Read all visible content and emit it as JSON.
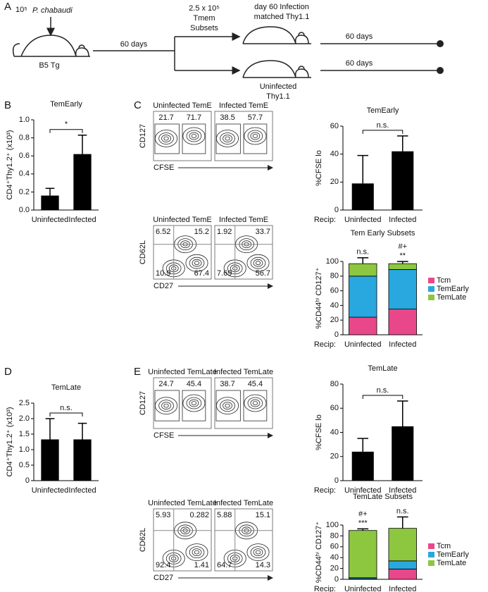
{
  "panel_labels": [
    "A",
    "B",
    "C",
    "D",
    "E"
  ],
  "schematic": {
    "dose": "10⁵",
    "parasite": "P. chabaudi",
    "donor": "B5 Tg",
    "interval": "60 days",
    "cells": [
      "2.5 x 10⁵",
      "Tmem",
      "Subsets"
    ],
    "infected_recipient": [
      "day 60 Infection",
      "matched Thy1.1"
    ],
    "uninfected_recipient": [
      "Uninfected",
      "Thy1.1"
    ],
    "followup": [
      "60 days",
      "60 days"
    ]
  },
  "recip_label": "Recip:",
  "chart_data": [
    {
      "type": "bar",
      "title": "TemEarly",
      "y_label": "CD4⁺Thy1.2⁺ (x10³)",
      "categories": [
        "Uninfected",
        "Infected"
      ],
      "values": [
        0.16,
        0.62
      ],
      "errors": [
        0.08,
        0.21
      ],
      "color": "#000000",
      "ylim": [
        0,
        1.0
      ],
      "yticks": [
        {
          "value": 0,
          "label": "0.0"
        },
        0.2,
        0.4,
        0.6,
        0.8,
        {
          "value": 1,
          "label": "1.0"
        }
      ],
      "annotations": [
        "*"
      ]
    },
    {
      "type": "bar",
      "title": "TemEarly",
      "y_label": "%CFSE lo",
      "categories": [
        "Uninfected",
        "Infected"
      ],
      "values": [
        19,
        42
      ],
      "errors": [
        20,
        11
      ],
      "color": "#000000",
      "ylim": [
        0,
        60
      ],
      "yticks": [
        0,
        20,
        40,
        60
      ],
      "annotations": [
        "n.s."
      ]
    },
    {
      "type": "stacked_bar",
      "title": "Tem Early Subsets",
      "y_label": "%CD44ʰⁱ CD127⁺",
      "categories": [
        "Uninfected",
        "Infected"
      ],
      "series": [
        {
          "name": "Tcm",
          "color": "#e8488a",
          "values": [
            24,
            35
          ],
          "errors": [
            18,
            4
          ]
        },
        {
          "name": "TemEarly",
          "color": "#29a8e0",
          "values": [
            56,
            54
          ],
          "errors": [
            3,
            2
          ]
        },
        {
          "name": "TemLate",
          "color": "#8dc63f",
          "values": [
            17,
            8
          ],
          "errors": [
            8,
            3
          ]
        }
      ],
      "ylim": [
        0,
        100
      ],
      "yticks": [
        0,
        20,
        40,
        60,
        80,
        100
      ],
      "annotations": [
        [
          "n.s."
        ],
        [
          "#+",
          "**"
        ]
      ]
    },
    {
      "type": "bar",
      "title": "TemLate",
      "y_label": "CD4⁺Thy1.2⁺ (x10³)",
      "categories": [
        "Uninfected",
        "Infected"
      ],
      "values": [
        1.33,
        1.33
      ],
      "errors": [
        0.67,
        0.52
      ],
      "color": "#000000",
      "ylim": [
        0,
        2.5
      ],
      "yticks": [
        0,
        0.5,
        {
          "value": 1,
          "label": "1.0"
        },
        1.5,
        {
          "value": 2,
          "label": "2.0"
        },
        2.5
      ],
      "annotations": [
        "n.s."
      ]
    },
    {
      "type": "bar",
      "title": "TemLate",
      "y_label": "%CFSE lo",
      "categories": [
        "Uninfected",
        "Infected"
      ],
      "values": [
        24,
        45
      ],
      "errors": [
        11,
        21
      ],
      "color": "#000000",
      "ylim": [
        0,
        80
      ],
      "yticks": [
        0,
        20,
        40,
        60,
        80
      ],
      "annotations": [
        "n.s."
      ]
    },
    {
      "type": "stacked_bar",
      "title": "TemLate Subsets",
      "y_label": "%CD44ʰⁱ CD127⁺",
      "categories": [
        "Uninfected",
        "Infected"
      ],
      "series": [
        {
          "name": "Tcm",
          "color": "#e8488a",
          "values": [
            1,
            19
          ],
          "errors": [
            0.5,
            7
          ]
        },
        {
          "name": "TemEarly",
          "color": "#29a8e0",
          "values": [
            2,
            15
          ],
          "errors": [
            2,
            13
          ]
        },
        {
          "name": "TemLate",
          "color": "#8dc63f",
          "values": [
            87,
            60
          ],
          "errors": [
            3,
            21
          ]
        }
      ],
      "ylim": [
        0,
        100
      ],
      "yticks": [
        0,
        20,
        40,
        60,
        80,
        100
      ],
      "annotations": [
        [
          "#+",
          "***"
        ],
        [
          "n.s."
        ]
      ]
    }
  ],
  "flow_plots": [
    {
      "y_label": "CD127",
      "x_label": "CFSE",
      "plots": [
        {
          "title": "Uninfected TemE",
          "gates": [
            21.7,
            71.7
          ]
        },
        {
          "title": "Infected TemE",
          "gates": [
            38.5,
            57.7
          ]
        }
      ]
    },
    {
      "y_label": "CD62L",
      "x_label": "CD27",
      "plots": [
        {
          "title": "Uninfected TemE",
          "gates": [
            6.52,
            15.2,
            10.9,
            67.4
          ]
        },
        {
          "title": "Infected TemE",
          "gates": [
            1.92,
            33.7,
            7.69,
            56.7
          ]
        }
      ]
    },
    {
      "y_label": "CD127",
      "x_label": "CFSE",
      "plots": [
        {
          "title": "Uninfected TemLate",
          "gates": [
            24.7,
            45.4
          ]
        },
        {
          "title": "Infected TemLate",
          "gates": [
            38.7,
            45.4
          ]
        }
      ]
    },
    {
      "y_label": "CD62L",
      "x_label": "CD27",
      "plots": [
        {
          "title": "Uninfected TemLate",
          "gates": [
            5.93,
            0.282,
            92.4,
            1.41
          ]
        },
        {
          "title": "Infected TemLate",
          "gates": [
            5.88,
            15.1,
            64.7,
            14.3
          ]
        }
      ]
    }
  ]
}
